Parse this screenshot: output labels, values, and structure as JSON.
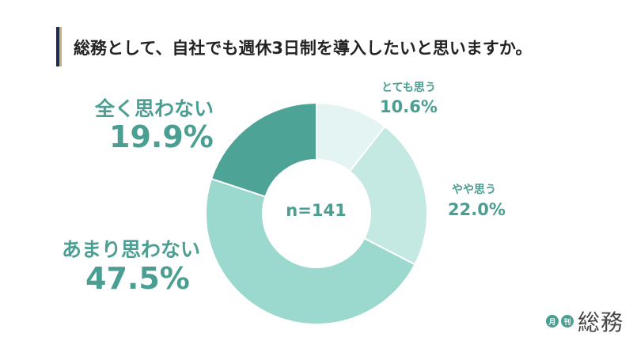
{
  "title": "総務として、自社でも週休3日制を導入したいと思いますか。",
  "center_label": "n=141",
  "logo": {
    "mark1": "月",
    "mark2": "刊",
    "word": "総務"
  },
  "colors": {
    "accent": "#4a9e92",
    "navy_bar": "#1f2b4d",
    "gold_bar": "#c9b27a"
  },
  "chart_data": {
    "type": "pie",
    "donut": true,
    "n": 141,
    "start": "12 o'clock",
    "direction": "clockwise",
    "slices": [
      {
        "label": "とても思う",
        "value": 10.6,
        "display": "10.6%",
        "color": "#e4f4f2"
      },
      {
        "label": "やや思う",
        "value": 22.0,
        "display": "22.0%",
        "color": "#c4e8e2"
      },
      {
        "label": "あまり思わない",
        "value": 47.5,
        "display": "47.5%",
        "color": "#9bd8ce"
      },
      {
        "label": "全く思わない",
        "value": 19.9,
        "display": "19.9%",
        "color": "#4da396"
      }
    ]
  }
}
